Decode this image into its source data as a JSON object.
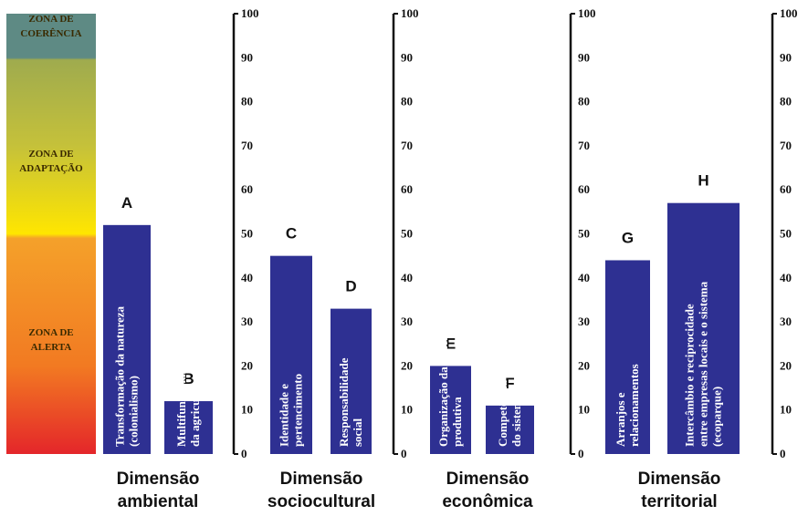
{
  "zones": [
    {
      "lines": [
        "ZONA DE",
        "COERÊNCIA"
      ],
      "from": 90,
      "to": 100,
      "color": "#5e8a84"
    },
    {
      "lines": [
        "ZONA DE",
        "ADAPTAÇÃO"
      ],
      "from": 50,
      "to": 90,
      "color": "#c9c23a"
    },
    {
      "lines": [
        "ZONA DE",
        "ALERTA"
      ],
      "from": 0,
      "to": 50,
      "color": "#f08a2a"
    }
  ],
  "chart_data": {
    "type": "bar",
    "title": "",
    "xlabel": "",
    "ylabel": "",
    "ylim": [
      0,
      100
    ],
    "yticks": [
      0,
      10,
      20,
      30,
      40,
      50,
      60,
      70,
      80,
      90,
      100
    ],
    "bar_color": "#2e3092",
    "groups": [
      {
        "name_lines": [
          "Dimensão",
          "ambiental"
        ]
      },
      {
        "name_lines": [
          "Dimensão",
          "sociocultural"
        ]
      },
      {
        "name_lines": [
          "Dimensão",
          "econômica"
        ]
      },
      {
        "name_lines": [
          "Dimensão",
          "territorial"
        ]
      }
    ],
    "bars": [
      {
        "letter": "A",
        "value": 52,
        "group": 0,
        "text_lines": [
          "Transformação da natureza",
          "(colonialismo)"
        ]
      },
      {
        "letter": "B",
        "value": 12,
        "group": 0,
        "text_lines": [
          "Multifuncionalidade",
          "da agricultura"
        ]
      },
      {
        "letter": "C",
        "value": 45,
        "group": 1,
        "text_lines": [
          "Identidade e",
          "pertencimento"
        ]
      },
      {
        "letter": "D",
        "value": 33,
        "group": 1,
        "text_lines": [
          "Responsabilidade",
          "social"
        ]
      },
      {
        "letter": "E",
        "value": 20,
        "group": 2,
        "text_lines": [
          "Organização da cadeia",
          "produtiva"
        ]
      },
      {
        "letter": "F",
        "value": 11,
        "group": 2,
        "text_lines": [
          "Competência e estabilidade",
          "do sistema"
        ]
      },
      {
        "letter": "G",
        "value": 44,
        "group": 3,
        "text_lines": [
          "Arranjos e",
          "relacionamentos"
        ]
      },
      {
        "letter": "H",
        "value": 57,
        "group": 3,
        "text_lines": [
          "Intercâmbio e reciprocidade",
          "entre empresas locais e o sistema",
          "(ecoparque)"
        ]
      }
    ]
  }
}
